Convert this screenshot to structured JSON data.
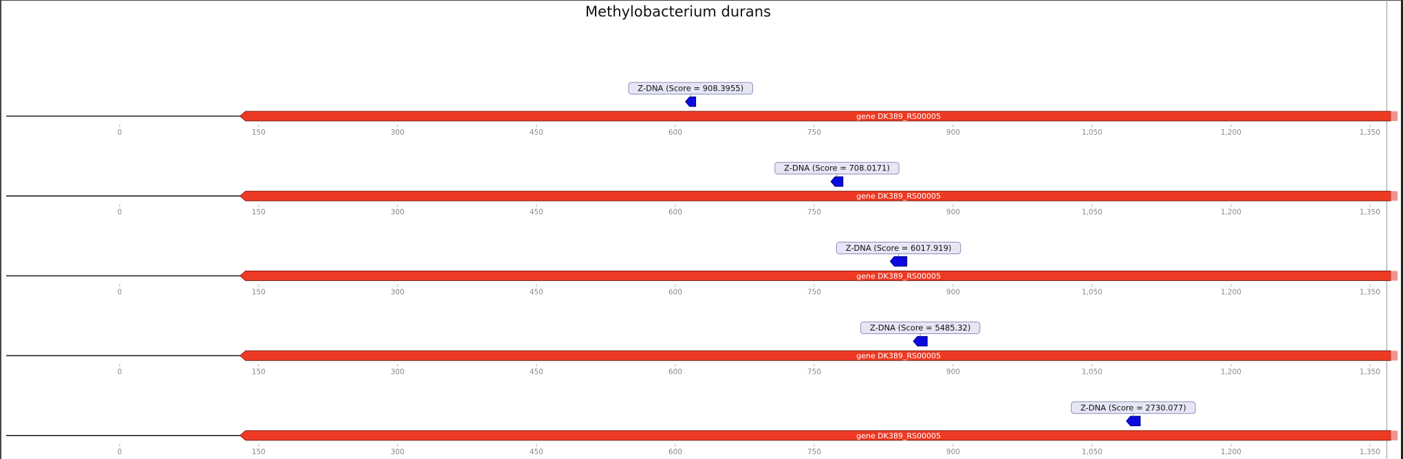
{
  "title": "Methylobacterium durans",
  "axis": {
    "min": 0,
    "max": 1380,
    "ticks": [
      0,
      150,
      300,
      450,
      600,
      750,
      900,
      1050,
      1200,
      1350
    ],
    "tick_labels": [
      "0",
      "150",
      "300",
      "450",
      "600",
      "750",
      "900",
      "1,050",
      "1,200",
      "1,350"
    ]
  },
  "colors": {
    "gene_fill": "#ee3a24",
    "gene_stroke": "#7a1a10",
    "gene_label": "#ffffff",
    "feature_fill": "#0a0ae0",
    "label_box_fill": "#e6e6f7",
    "label_box_stroke": "#8a8ab4",
    "axis_text": "#888888",
    "baseline": "#222222"
  },
  "tracks": [
    {
      "gene": {
        "label": "gene DK389_RS00005",
        "start": 130,
        "end": 1380,
        "strand": "-"
      },
      "feature": {
        "label": "Z-DNA (Score = 908.3955)",
        "start": 611,
        "end": 622,
        "strand": "-"
      }
    },
    {
      "gene": {
        "label": "gene DK389_RS00005",
        "start": 130,
        "end": 1380,
        "strand": "-"
      },
      "feature": {
        "label": "Z-DNA (Score = 708.0171)",
        "start": 768,
        "end": 781,
        "strand": "-"
      }
    },
    {
      "gene": {
        "label": "gene DK389_RS00005",
        "start": 130,
        "end": 1380,
        "strand": "-"
      },
      "feature": {
        "label": "Z-DNA (Score = 6017.919)",
        "start": 832,
        "end": 850,
        "strand": "-"
      }
    },
    {
      "gene": {
        "label": "gene DK389_RS00005",
        "start": 130,
        "end": 1380,
        "strand": "-"
      },
      "feature": {
        "label": "Z-DNA (Score = 5485.32)",
        "start": 857,
        "end": 872,
        "strand": "-"
      }
    },
    {
      "gene": {
        "label": "gene DK389_RS00005",
        "start": 130,
        "end": 1380,
        "strand": "-"
      },
      "feature": {
        "label": "Z-DNA (Score = 2730.077)",
        "start": 1087,
        "end": 1102,
        "strand": "-"
      }
    }
  ]
}
